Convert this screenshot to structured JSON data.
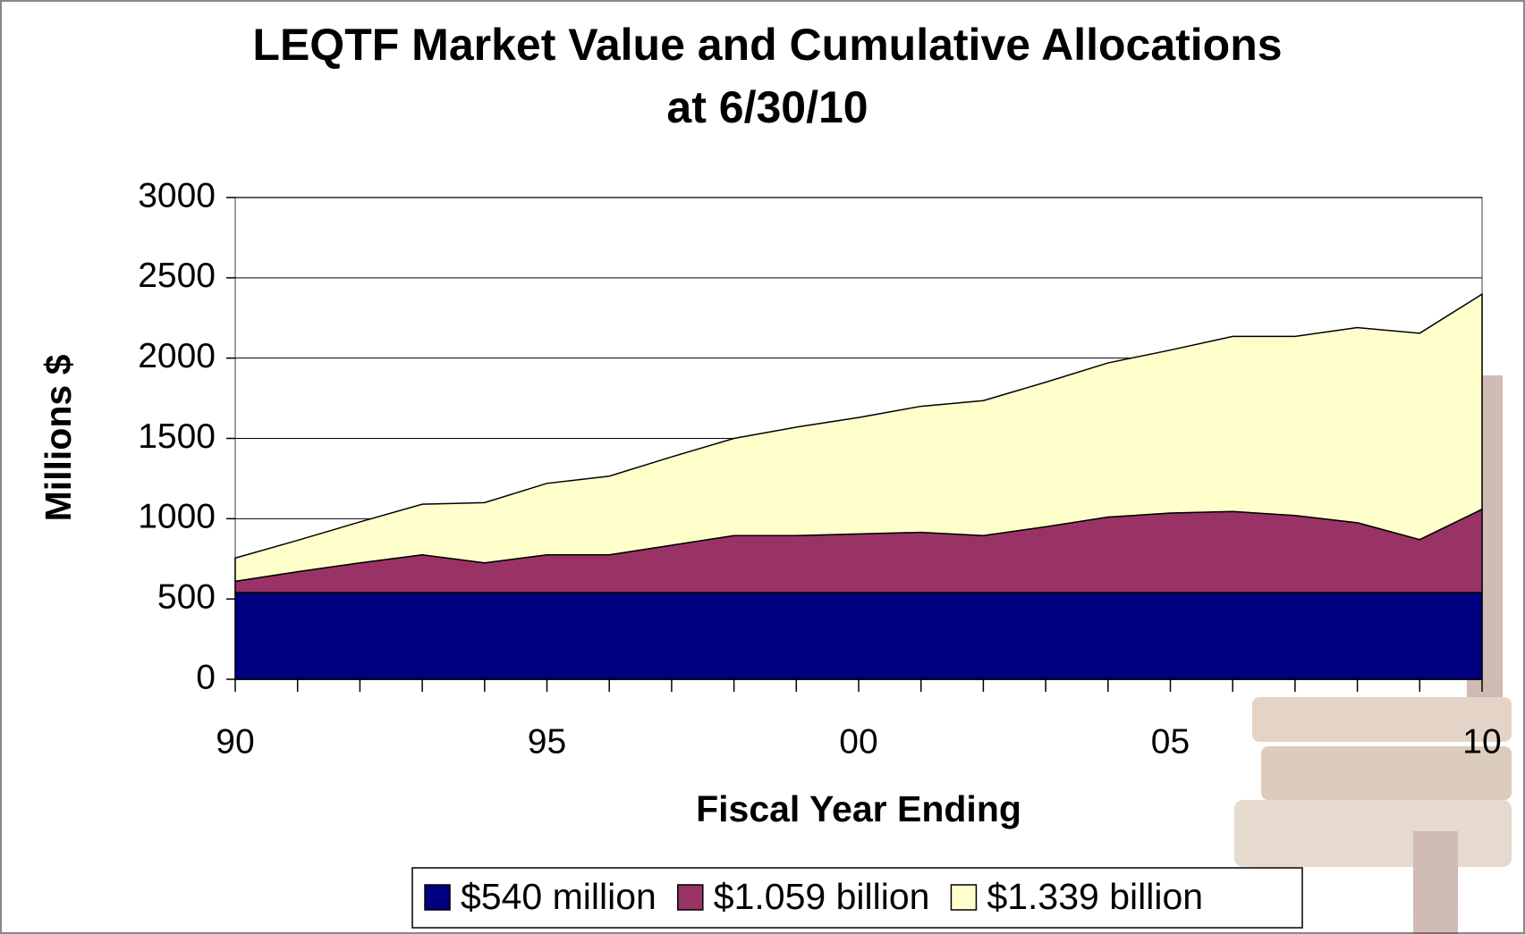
{
  "chart_data": {
    "type": "stacked-area",
    "title": "LEQTF Market Value and Cumulative Allocations",
    "subtitle": "at 6/30/10",
    "xlabel": "Fiscal Year Ending",
    "ylabel": "Millions $",
    "categories": [
      "90",
      null,
      null,
      null,
      null,
      "95",
      null,
      null,
      null,
      null,
      "00",
      null,
      null,
      null,
      null,
      "05",
      null,
      null,
      null,
      null,
      "10"
    ],
    "series": [
      {
        "name": "$540 million",
        "color": "#000080",
        "values": [
          540,
          540,
          540,
          540,
          540,
          540,
          540,
          540,
          540,
          540,
          540,
          540,
          540,
          540,
          540,
          540,
          540,
          540,
          540,
          540,
          540
        ]
      },
      {
        "name": "$1.059 billion",
        "color": "#993366",
        "values": [
          70,
          130,
          185,
          235,
          185,
          235,
          235,
          295,
          355,
          355,
          365,
          375,
          355,
          410,
          470,
          495,
          505,
          480,
          435,
          330,
          519
        ]
      },
      {
        "name": "$1.339 billion",
        "color": "#ffffcc",
        "values": [
          145,
          195,
          255,
          315,
          375,
          445,
          490,
          550,
          605,
          675,
          725,
          785,
          840,
          900,
          960,
          1015,
          1090,
          1115,
          1215,
          1285,
          1339
        ]
      }
    ],
    "ylim": [
      0,
      3000
    ],
    "yticks": [
      0,
      500,
      1000,
      1500,
      2000,
      2500,
      3000
    ],
    "grid": true
  }
}
